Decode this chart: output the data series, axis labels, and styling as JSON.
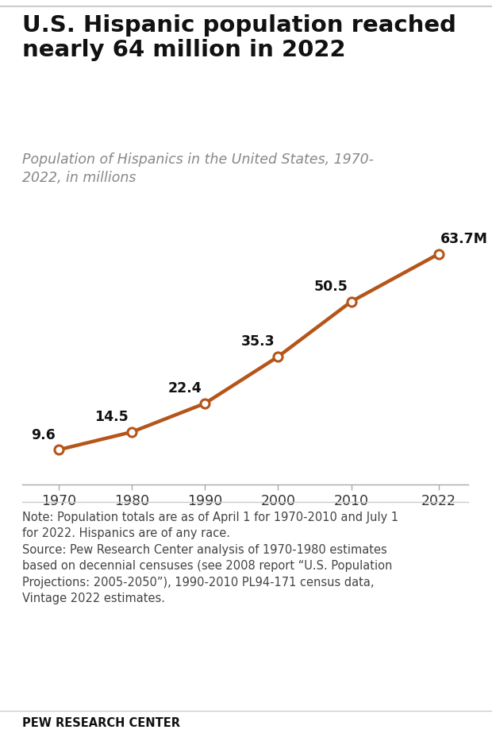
{
  "title": "U.S. Hispanic population reached\nnearly 64 million in 2022",
  "subtitle": "Population of Hispanics in the United States, 1970-\n2022, in millions",
  "years": [
    1970,
    1980,
    1990,
    2000,
    2010,
    2022
  ],
  "values": [
    9.6,
    14.5,
    22.4,
    35.3,
    50.5,
    63.7
  ],
  "labels": [
    "9.6",
    "14.5",
    "22.4",
    "35.3",
    "50.5",
    "63.7M"
  ],
  "line_color": "#b5551a",
  "marker_facecolor": "#ffffff",
  "marker_edgecolor": "#b5551a",
  "note_text": "Note: Population totals are as of April 1 for 1970-2010 and July 1\nfor 2022. Hispanics are of any race.\nSource: Pew Research Center analysis of 1970-1980 estimates\nbased on decennial censuses (see 2008 report “U.S. Population\nProjections: 2005-2050”), 1990-2010 PL94-171 census data,\nVintage 2022 estimates.",
  "source_bold": "PEW RESEARCH CENTER",
  "bg_color": "#ffffff",
  "title_color": "#111111",
  "subtitle_color": "#888888",
  "note_color": "#444444",
  "label_color": "#111111",
  "tick_color": "#333333",
  "spine_color": "#aaaaaa",
  "sep_color": "#cccccc",
  "title_fontsize": 21,
  "subtitle_fontsize": 12.5,
  "label_fontsize": 12.5,
  "note_fontsize": 10.5,
  "source_fontsize": 10.5,
  "tick_fontsize": 12.5,
  "line_width": 3.2,
  "marker_size": 8,
  "marker_edge_width": 2.2,
  "ylim": [
    0,
    75
  ],
  "xlim": [
    1965,
    2026
  ]
}
